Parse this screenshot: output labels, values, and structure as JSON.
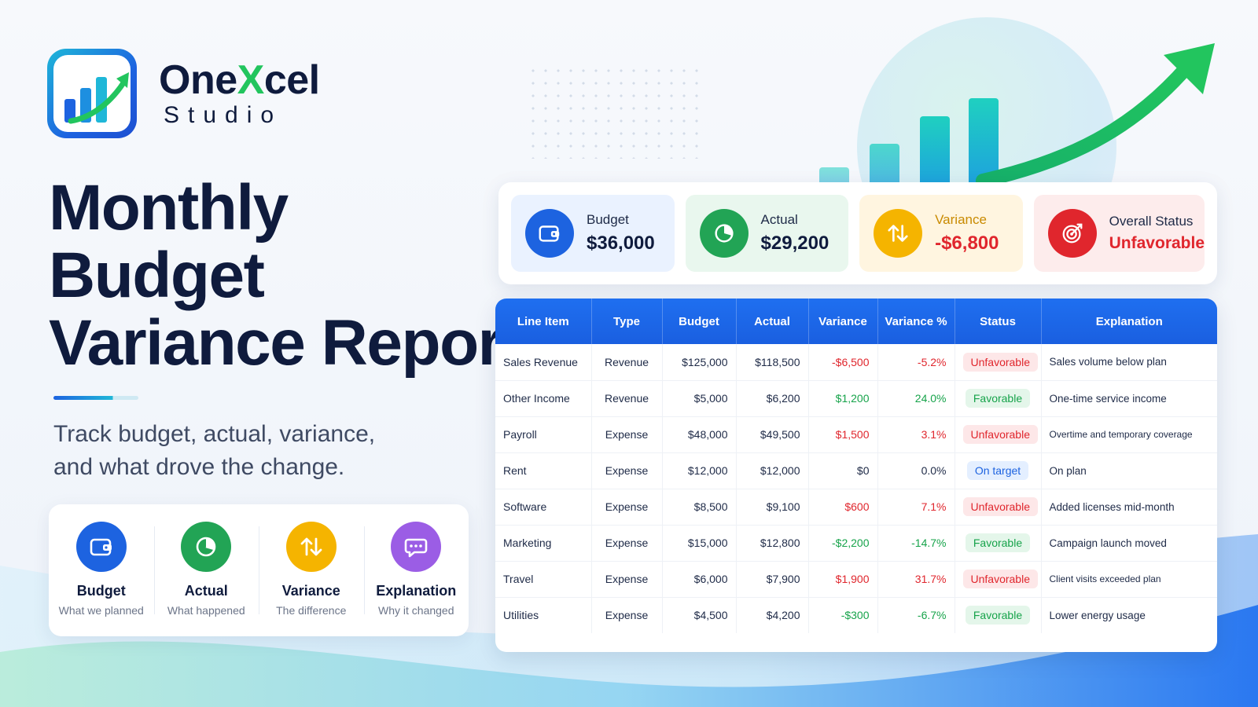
{
  "brand": {
    "name_pre": "One",
    "name_x": "X",
    "name_post": "cel",
    "sub": "Studio",
    "accent_color": "#22c55e",
    "primary_color": "#1d63e0"
  },
  "title": {
    "line1": "Monthly",
    "line2": "Budget",
    "line3": "Variance Report"
  },
  "subtitle": {
    "line1": "Track budget, actual, variance,",
    "line2": "and what drove the change."
  },
  "legend": [
    {
      "name": "Budget",
      "desc": "What we planned",
      "icon": "wallet-icon",
      "color": "#1d63e0"
    },
    {
      "name": "Actual",
      "desc": "What happened",
      "icon": "pie-chart-icon",
      "color": "#22a455"
    },
    {
      "name": "Variance",
      "desc": "The difference",
      "icon": "arrows-up-down-icon",
      "color": "#f5b400"
    },
    {
      "name": "Explanation",
      "desc": "Why it changed",
      "icon": "chat-bubble-icon",
      "color": "#9b5de5"
    }
  ],
  "kpis": [
    {
      "label": "Budget",
      "value": "$36,000",
      "icon": "wallet-icon",
      "bg": "#eaf2ff",
      "icon_color": "#1d63e0",
      "label_color": "#1e2a47",
      "value_color": "#0f1b3d"
    },
    {
      "label": "Actual",
      "value": "$29,200",
      "icon": "pie-chart-icon",
      "bg": "#e9f7ee",
      "icon_color": "#22a455",
      "label_color": "#1e2a47",
      "value_color": "#0f1b3d"
    },
    {
      "label": "Variance",
      "value": "-$6,800",
      "icon": "arrows-up-down-icon",
      "bg": "#fff5e0",
      "icon_color": "#f5b400",
      "label_color": "#c98a00",
      "value_color": "#e0262d"
    },
    {
      "label": "Overall Status",
      "value": "Unfavorable",
      "icon": "target-icon",
      "bg": "#fdecec",
      "icon_color": "#e0262d",
      "label_color": "#1e2a47",
      "value_color": "#e0262d"
    }
  ],
  "table": {
    "headers": [
      "Line Item",
      "Type",
      "Budget",
      "Actual",
      "Variance",
      "Variance %",
      "Status",
      "Explanation"
    ],
    "rows": [
      {
        "item": "Sales Revenue",
        "type": "Revenue",
        "budget": "$125,000",
        "actual": "$118,500",
        "variance": "-$6,500",
        "variance_pct": "-5.2%",
        "status": "Unfavorable",
        "explanation": "Sales volume below plan",
        "tone": "neg"
      },
      {
        "item": "Other Income",
        "type": "Revenue",
        "budget": "$5,000",
        "actual": "$6,200",
        "variance": "$1,200",
        "variance_pct": "24.0%",
        "status": "Favorable",
        "explanation": "One-time service income",
        "tone": "pos"
      },
      {
        "item": "Payroll",
        "type": "Expense",
        "budget": "$48,000",
        "actual": "$49,500",
        "variance": "$1,500",
        "variance_pct": "3.1%",
        "status": "Unfavorable",
        "explanation": "Overtime and temporary coverage",
        "tone": "neg"
      },
      {
        "item": "Rent",
        "type": "Expense",
        "budget": "$12,000",
        "actual": "$12,000",
        "variance": "$0",
        "variance_pct": "0.0%",
        "status": "On target",
        "explanation": "On plan",
        "tone": "neutral"
      },
      {
        "item": "Software",
        "type": "Expense",
        "budget": "$8,500",
        "actual": "$9,100",
        "variance": "$600",
        "variance_pct": "7.1%",
        "status": "Unfavorable",
        "explanation": "Added licenses mid-month",
        "tone": "neg"
      },
      {
        "item": "Marketing",
        "type": "Expense",
        "budget": "$15,000",
        "actual": "$12,800",
        "variance": "-$2,200",
        "variance_pct": "-14.7%",
        "status": "Favorable",
        "explanation": "Campaign launch moved",
        "tone": "pos"
      },
      {
        "item": "Travel",
        "type": "Expense",
        "budget": "$6,000",
        "actual": "$7,900",
        "variance": "$1,900",
        "variance_pct": "31.7%",
        "status": "Unfavorable",
        "explanation": "Client visits exceeded plan",
        "tone": "neg"
      },
      {
        "item": "Utilities",
        "type": "Expense",
        "budget": "$4,500",
        "actual": "$4,200",
        "variance": "-$300",
        "variance_pct": "-6.7%",
        "status": "Favorable",
        "explanation": "Lower energy usage",
        "tone": "pos"
      }
    ]
  }
}
